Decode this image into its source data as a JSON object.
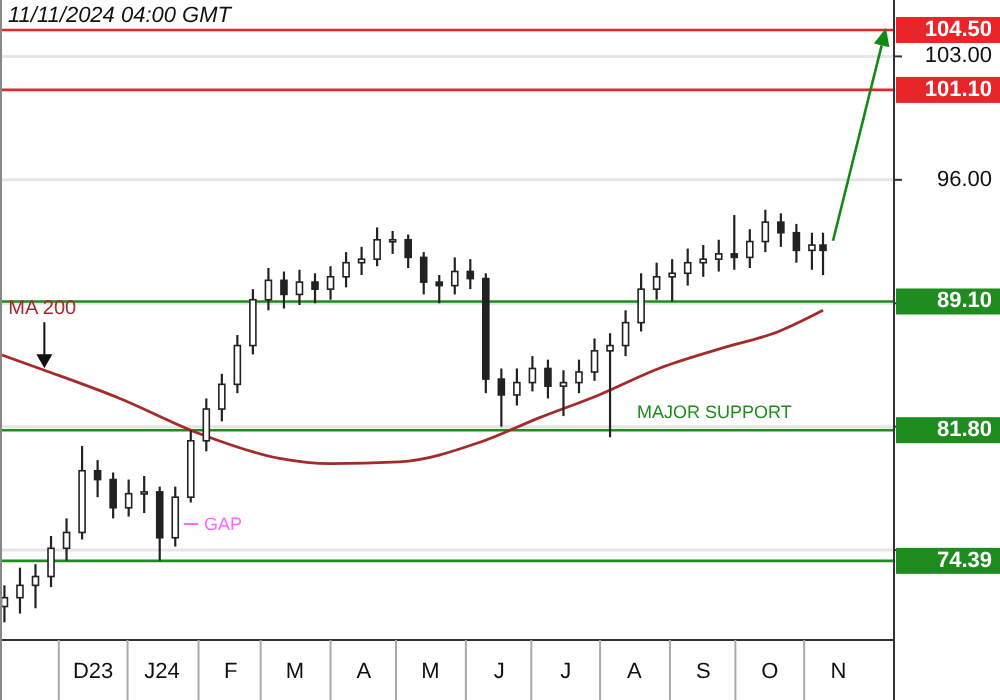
{
  "chart_data": {
    "type": "candlestick",
    "title": "11/11/2024 04:00 GMT",
    "color": "#222222",
    "x": [
      "2023-11-05",
      "2023-11-12",
      "2023-11-19",
      "2023-11-26",
      "2023-12-03",
      "2023-12-10",
      "2023-12-17",
      "2023-12-24",
      "2023-12-31",
      "2024-01-07",
      "2024-01-14",
      "2024-01-21",
      "2024-01-28",
      "2024-02-04",
      "2024-02-11",
      "2024-02-18",
      "2024-02-25",
      "2024-03-03",
      "2024-03-10",
      "2024-03-17",
      "2024-03-24",
      "2024-03-31",
      "2024-04-07",
      "2024-04-14",
      "2024-04-21",
      "2024-04-28",
      "2024-05-05",
      "2024-05-12",
      "2024-05-19",
      "2024-05-26",
      "2024-06-02",
      "2024-06-09",
      "2024-06-16",
      "2024-06-23",
      "2024-06-30",
      "2024-07-07",
      "2024-07-14",
      "2024-07-21",
      "2024-07-28",
      "2024-08-04",
      "2024-08-11",
      "2024-08-18",
      "2024-08-25",
      "2024-09-01",
      "2024-09-08",
      "2024-09-15",
      "2024-09-22",
      "2024-09-29",
      "2024-10-06",
      "2024-10-13",
      "2024-10-20",
      "2024-10-27",
      "2024-11-03",
      "2024-11-08"
    ],
    "ohlc": [
      [
        71.8,
        73.0,
        70.9,
        72.3
      ],
      [
        72.3,
        74.0,
        71.4,
        73.0
      ],
      [
        73.0,
        74.2,
        71.7,
        73.5
      ],
      [
        73.5,
        75.8,
        72.9,
        75.1
      ],
      [
        75.1,
        76.8,
        74.4,
        76.0
      ],
      [
        76.0,
        80.9,
        75.6,
        79.5
      ],
      [
        79.5,
        80.1,
        78.0,
        79.0
      ],
      [
        79.0,
        79.4,
        76.8,
        77.4
      ],
      [
        77.4,
        79.0,
        76.9,
        78.2
      ],
      [
        78.2,
        79.2,
        77.1,
        78.3
      ],
      [
        78.3,
        78.6,
        74.4,
        75.7
      ],
      [
        75.7,
        78.6,
        75.2,
        78.0
      ],
      [
        78.0,
        81.8,
        77.7,
        81.2
      ],
      [
        81.2,
        83.6,
        80.6,
        83.0
      ],
      [
        83.0,
        85.0,
        82.3,
        84.4
      ],
      [
        84.4,
        87.2,
        83.9,
        86.6
      ],
      [
        86.6,
        89.8,
        86.1,
        89.2
      ],
      [
        89.2,
        91.0,
        88.6,
        90.3
      ],
      [
        90.3,
        90.8,
        88.7,
        89.5
      ],
      [
        89.5,
        90.9,
        88.9,
        90.2
      ],
      [
        90.2,
        90.7,
        89.0,
        89.8
      ],
      [
        89.8,
        91.1,
        89.2,
        90.5
      ],
      [
        90.5,
        91.9,
        89.9,
        91.3
      ],
      [
        91.3,
        92.2,
        90.6,
        91.5
      ],
      [
        91.5,
        93.3,
        91.1,
        92.6
      ],
      [
        92.6,
        93.1,
        91.8,
        92.6
      ],
      [
        92.6,
        92.9,
        91.0,
        91.6
      ],
      [
        91.6,
        91.9,
        89.5,
        90.2
      ],
      [
        90.2,
        90.6,
        89.0,
        90.0
      ],
      [
        90.0,
        91.6,
        89.5,
        90.8
      ],
      [
        90.8,
        91.5,
        89.8,
        90.4
      ],
      [
        90.4,
        90.7,
        83.9,
        84.7
      ],
      [
        84.7,
        85.3,
        82.0,
        83.8
      ],
      [
        83.8,
        85.3,
        83.2,
        84.5
      ],
      [
        84.5,
        86.0,
        84.0,
        85.3
      ],
      [
        85.3,
        85.8,
        83.6,
        84.3
      ],
      [
        84.3,
        85.2,
        82.6,
        84.5
      ],
      [
        84.5,
        85.8,
        83.9,
        85.1
      ],
      [
        85.1,
        87.0,
        84.6,
        86.3
      ],
      [
        86.3,
        87.3,
        81.4,
        86.6
      ],
      [
        86.6,
        88.6,
        86.0,
        87.9
      ],
      [
        87.9,
        90.7,
        87.4,
        89.8
      ],
      [
        89.8,
        91.3,
        89.2,
        90.5
      ],
      [
        90.5,
        91.5,
        89.1,
        90.7
      ],
      [
        90.7,
        92.1,
        90.0,
        91.3
      ],
      [
        91.3,
        92.3,
        90.5,
        91.5
      ],
      [
        91.5,
        92.6,
        90.8,
        91.8
      ],
      [
        91.8,
        94.0,
        90.9,
        91.6
      ],
      [
        91.6,
        93.2,
        91.0,
        92.5
      ],
      [
        92.5,
        94.3,
        91.9,
        93.6
      ],
      [
        93.6,
        94.1,
        92.2,
        93.0
      ],
      [
        93.0,
        93.5,
        91.3,
        92.0
      ],
      [
        92.0,
        93.0,
        90.9,
        92.3
      ],
      [
        92.3,
        93.0,
        90.6,
        92.0
      ]
    ],
    "series": [
      {
        "name": "MA 200",
        "type": "line",
        "color": "#a52a2a",
        "x": [
          "2023-11-03",
          "2023-11-23",
          "2023-12-27",
          "2024-02-01",
          "2024-03-08",
          "2024-03-31",
          "2024-05-01",
          "2024-06-06",
          "2024-07-03",
          "2024-07-30",
          "2024-08-26",
          "2024-09-22",
          "2024-10-19",
          "2024-11-08"
        ],
        "values": [
          86.1,
          85.2,
          83.6,
          81.6,
          80.2,
          79.9,
          80.0,
          81.1,
          82.5,
          83.8,
          85.3,
          86.4,
          87.4,
          88.6
        ]
      }
    ],
    "xlim": [
      "2023-11-03",
      "2024-12-10"
    ],
    "xticks": [
      {
        "value": "2023-12-15",
        "label": "D23"
      },
      {
        "value": "2024-01-15",
        "label": "J24"
      },
      {
        "value": "2024-02-15",
        "label": "F"
      },
      {
        "value": "2024-03-15",
        "label": "M"
      },
      {
        "value": "2024-04-15",
        "label": "A"
      },
      {
        "value": "2024-05-15",
        "label": "M"
      },
      {
        "value": "2024-06-15",
        "label": "J"
      },
      {
        "value": "2024-07-15",
        "label": "J"
      },
      {
        "value": "2024-08-15",
        "label": "A"
      },
      {
        "value": "2024-09-15",
        "label": "S"
      },
      {
        "value": "2024-10-15",
        "label": "O"
      },
      {
        "value": "2024-11-15",
        "label": "N"
      }
    ],
    "ylim": [
      69.9,
      106.2
    ],
    "yticks": [
      {
        "value": 75,
        "label": null
      },
      {
        "value": 82,
        "label": null
      },
      {
        "value": 89,
        "label": null
      },
      {
        "value": 96,
        "label": "96.00"
      },
      {
        "value": 103,
        "label": "103.00"
      }
    ],
    "grid": "y",
    "legend": false,
    "ref_lines": [
      {
        "axis": "y",
        "value": 104.5,
        "label": "104.50",
        "color": "#e8262a"
      },
      {
        "axis": "y",
        "value": 101.1,
        "label": "101.10",
        "color": "#e8262a"
      },
      {
        "axis": "y",
        "value": 89.1,
        "label": "89.10",
        "color": "#1e8c1e"
      },
      {
        "axis": "y",
        "value": 81.8,
        "label": "81.80",
        "color": "#1e8c1e"
      },
      {
        "axis": "y",
        "value": 74.39,
        "label": "74.39",
        "color": "#1e8c1e"
      }
    ],
    "annotations": [
      {
        "text": "MAJOR SUPPORT",
        "x": "2024-09-20",
        "y": 81.8
      },
      "GAP"
    ]
  }
}
